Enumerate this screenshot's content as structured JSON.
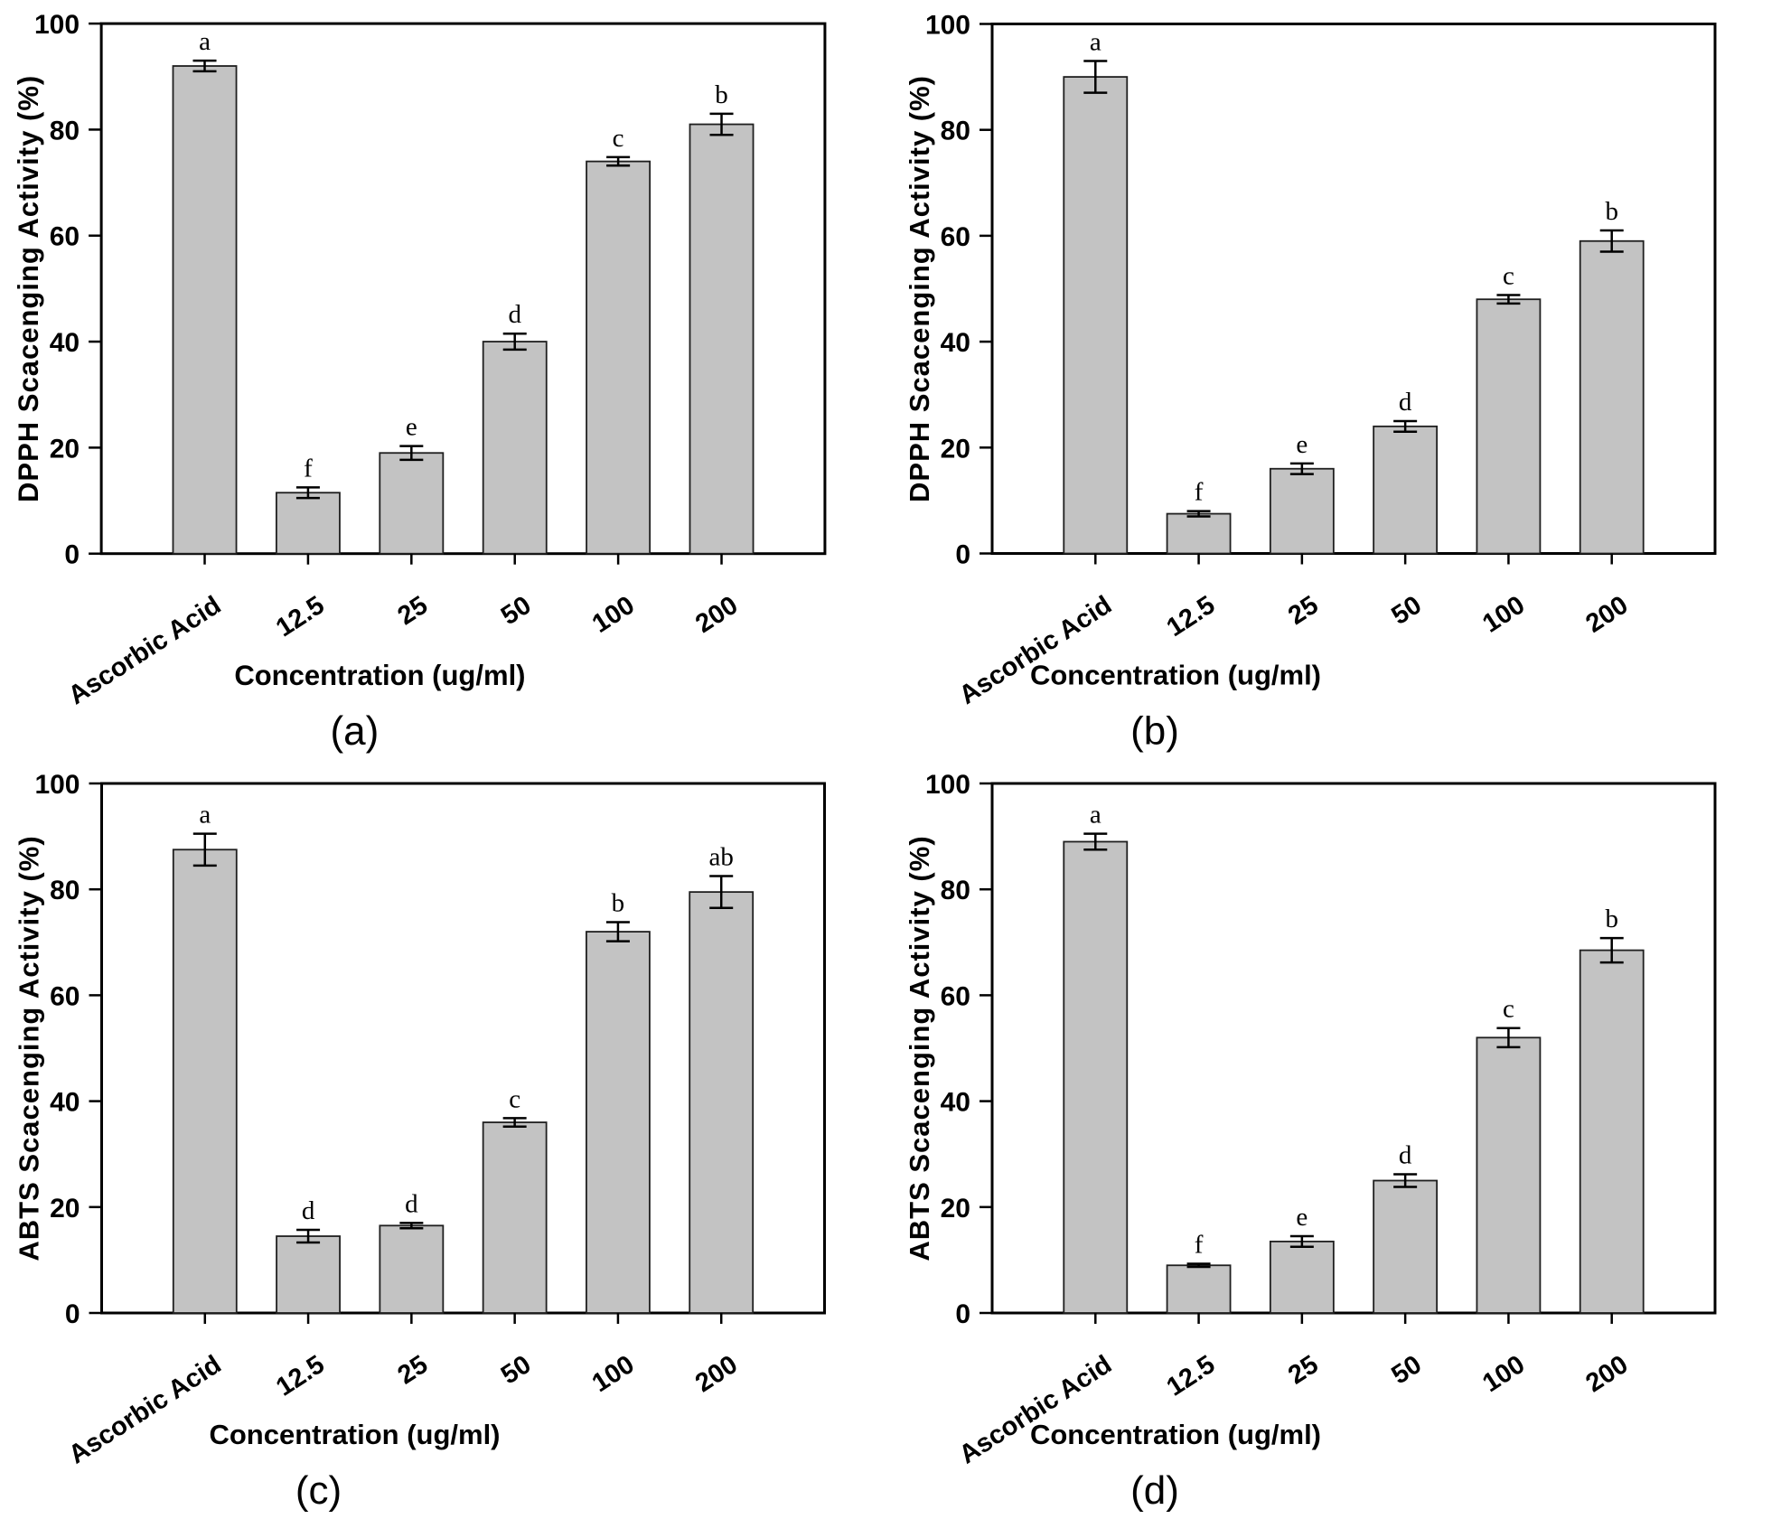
{
  "page": {
    "background": "#ffffff"
  },
  "styles": {
    "bar_fill": "#c3c3c3",
    "bar_stroke": "#1f1f1f",
    "axis_color": "#000000",
    "text_color": "#000000"
  },
  "chart_data": [
    {
      "type": "bar",
      "caption": "(a)",
      "xlabel": "Concentration (ug/ml)",
      "ylabel": "DPPH Scacenging Activity (%)",
      "categories": [
        "Ascorbic Acid",
        "12.5",
        "25",
        "50",
        "100",
        "200"
      ],
      "values": [
        92,
        11.5,
        19,
        40,
        74,
        81
      ],
      "errors": [
        1,
        1,
        1.3,
        1.5,
        0.8,
        2
      ],
      "sig_letters": [
        "a",
        "f",
        "e",
        "d",
        "c",
        "b"
      ],
      "ylim": [
        0,
        100
      ],
      "yticks": [
        0,
        20,
        40,
        60,
        80,
        100
      ],
      "grid": false,
      "legend": null
    },
    {
      "type": "bar",
      "caption": "(b)",
      "xlabel": "Concentration (ug/ml)",
      "ylabel": "DPPH Scacenging Activity (%)",
      "categories": [
        "Ascorbic Acid",
        "12.5",
        "25",
        "50",
        "100",
        "200"
      ],
      "values": [
        90,
        7.5,
        16,
        24,
        48,
        59
      ],
      "errors": [
        3,
        0.5,
        1,
        1,
        0.8,
        2
      ],
      "sig_letters": [
        "a",
        "f",
        "e",
        "d",
        "c",
        "b"
      ],
      "ylim": [
        0,
        100
      ],
      "yticks": [
        0,
        20,
        40,
        60,
        80,
        100
      ],
      "grid": false,
      "legend": null
    },
    {
      "type": "bar",
      "caption": "(c)",
      "xlabel": "Concentration (ug/ml)",
      "ylabel": "ABTS Scacenging Activity (%)",
      "categories": [
        "Ascorbic Acid",
        "12.5",
        "25",
        "50",
        "100",
        "200"
      ],
      "values": [
        87.5,
        14.5,
        16.5,
        36,
        72,
        79.5
      ],
      "errors": [
        3,
        1.2,
        0.5,
        0.8,
        1.8,
        3
      ],
      "sig_letters": [
        "a",
        "d",
        "d",
        "c",
        "b",
        "ab"
      ],
      "ylim": [
        0,
        100
      ],
      "yticks": [
        0,
        20,
        40,
        60,
        80,
        100
      ],
      "grid": false,
      "legend": null
    },
    {
      "type": "bar",
      "caption": "(d)",
      "xlabel": "Concentration (ug/ml)",
      "ylabel": "ABTS Scacenging Activity (%)",
      "categories": [
        "Ascorbic Acid",
        "12.5",
        "25",
        "50",
        "100",
        "200"
      ],
      "values": [
        89,
        9,
        13.5,
        25,
        52,
        68.5
      ],
      "errors": [
        1.5,
        0.3,
        1,
        1.2,
        1.8,
        2.3
      ],
      "sig_letters": [
        "a",
        "f",
        "e",
        "d",
        "c",
        "b"
      ],
      "ylim": [
        0,
        100
      ],
      "yticks": [
        0,
        20,
        40,
        60,
        80,
        100
      ],
      "grid": false,
      "legend": null
    }
  ]
}
